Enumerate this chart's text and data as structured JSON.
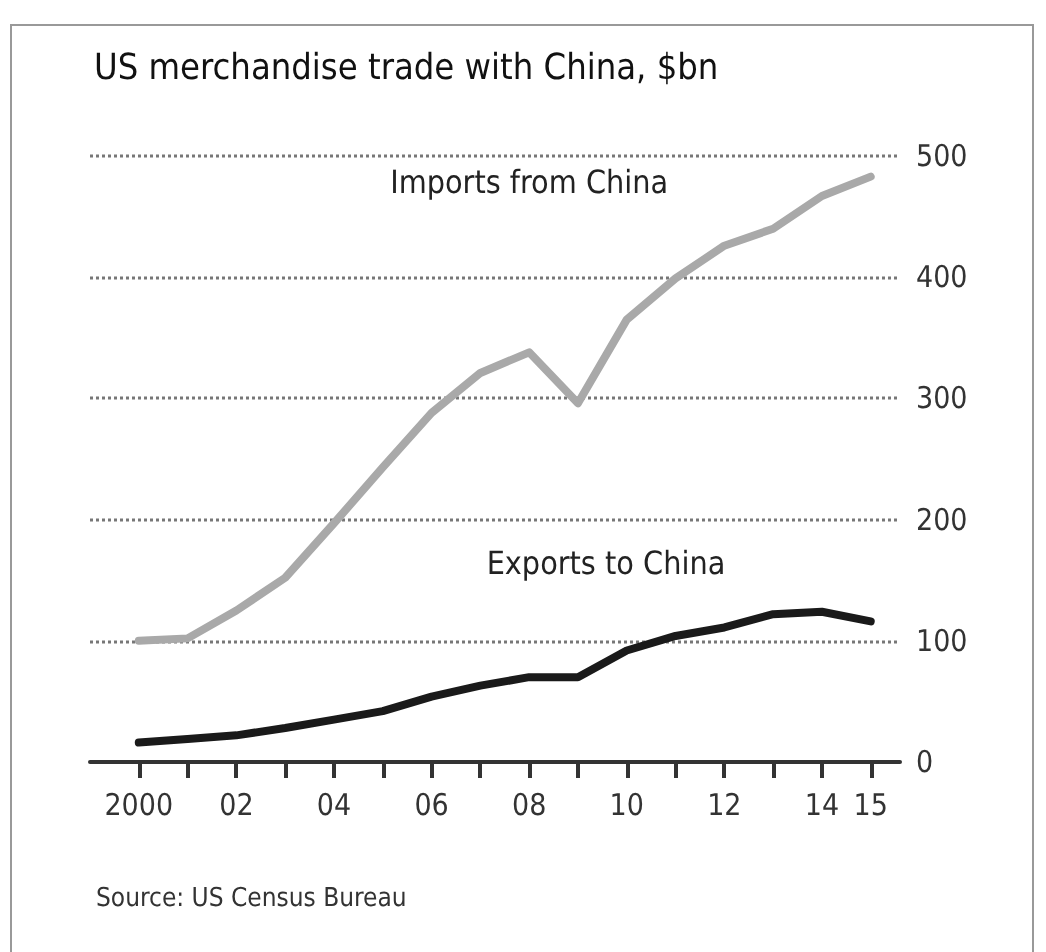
{
  "chart_data": {
    "type": "line",
    "title": "US merchandise trade with China, $bn",
    "x": [
      2000,
      2001,
      2002,
      2003,
      2004,
      2005,
      2006,
      2007,
      2008,
      2009,
      2010,
      2011,
      2012,
      2013,
      2014,
      2015
    ],
    "series": [
      {
        "name": "Imports from China",
        "color": "#a9a9a9",
        "values": [
          100,
          102,
          125,
          152,
          197,
          243,
          288,
          321,
          338,
          296,
          365,
          399,
          426,
          440,
          467,
          483
        ]
      },
      {
        "name": "Exports to China",
        "color": "#1a1a1a",
        "values": [
          16,
          19,
          22,
          28,
          35,
          42,
          54,
          63,
          70,
          70,
          92,
          104,
          111,
          122,
          124,
          116
        ]
      }
    ],
    "xlim": [
      1999,
      2015.6
    ],
    "xticks": [
      {
        "value": 2000,
        "label": "2000"
      },
      {
        "value": 2001,
        "label": null
      },
      {
        "value": 2002,
        "label": "02"
      },
      {
        "value": 2003,
        "label": null
      },
      {
        "value": 2004,
        "label": "04"
      },
      {
        "value": 2005,
        "label": null
      },
      {
        "value": 2006,
        "label": "06"
      },
      {
        "value": 2007,
        "label": null
      },
      {
        "value": 2008,
        "label": "08"
      },
      {
        "value": 2009,
        "label": null
      },
      {
        "value": 2010,
        "label": "10"
      },
      {
        "value": 2011,
        "label": null
      },
      {
        "value": 2012,
        "label": "12"
      },
      {
        "value": 2013,
        "label": null
      },
      {
        "value": 2014,
        "label": "14"
      },
      {
        "value": 2015,
        "label": "15"
      }
    ],
    "ylim": [
      0,
      500
    ],
    "yticks": [
      0,
      100,
      200,
      300,
      400,
      500
    ],
    "grid": "y",
    "legend": false,
    "marker": "none",
    "line_style": "solid",
    "annotations": [
      "Source: US Census Bureau"
    ]
  }
}
